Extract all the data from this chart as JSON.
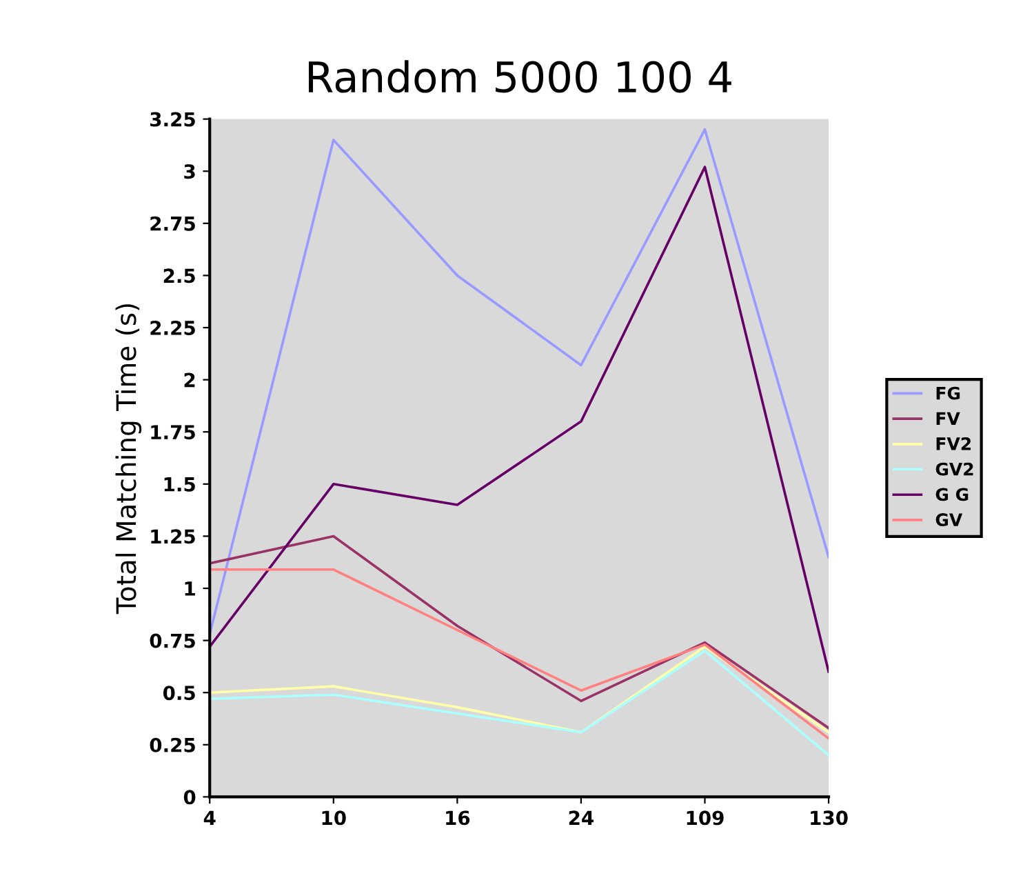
{
  "chart_data": {
    "type": "line",
    "title": "Random 5000 100 4",
    "ylabel": "Total Matching Time (s)",
    "categories": [
      "4",
      "10",
      "16",
      "24",
      "109",
      "130"
    ],
    "series": [
      {
        "name": "FG",
        "color": "#9999ff",
        "values": [
          0.78,
          3.15,
          2.5,
          2.07,
          3.2,
          1.15
        ]
      },
      {
        "name": "FV",
        "color": "#993366",
        "values": [
          1.12,
          1.25,
          0.82,
          0.46,
          0.74,
          0.33
        ]
      },
      {
        "name": "FV2",
        "color": "#ffffaa",
        "values": [
          0.5,
          0.53,
          0.43,
          0.31,
          0.72,
          0.31
        ]
      },
      {
        "name": "GV2",
        "color": "#aaffff",
        "values": [
          0.47,
          0.49,
          0.4,
          0.31,
          0.7,
          0.2
        ]
      },
      {
        "name": "G G",
        "color": "#660066",
        "values": [
          0.72,
          1.5,
          1.4,
          1.8,
          3.02,
          0.6
        ]
      },
      {
        "name": "GV",
        "color": "#ff8080",
        "values": [
          1.09,
          1.09,
          0.8,
          0.51,
          0.73,
          0.28
        ]
      }
    ],
    "ylim": [
      0,
      3.25
    ],
    "yticks": [
      0,
      0.25,
      0.5,
      0.75,
      1,
      1.25,
      1.5,
      1.75,
      2,
      2.25,
      2.5,
      2.75,
      3,
      3.25
    ],
    "grid": false,
    "legend": "right"
  }
}
